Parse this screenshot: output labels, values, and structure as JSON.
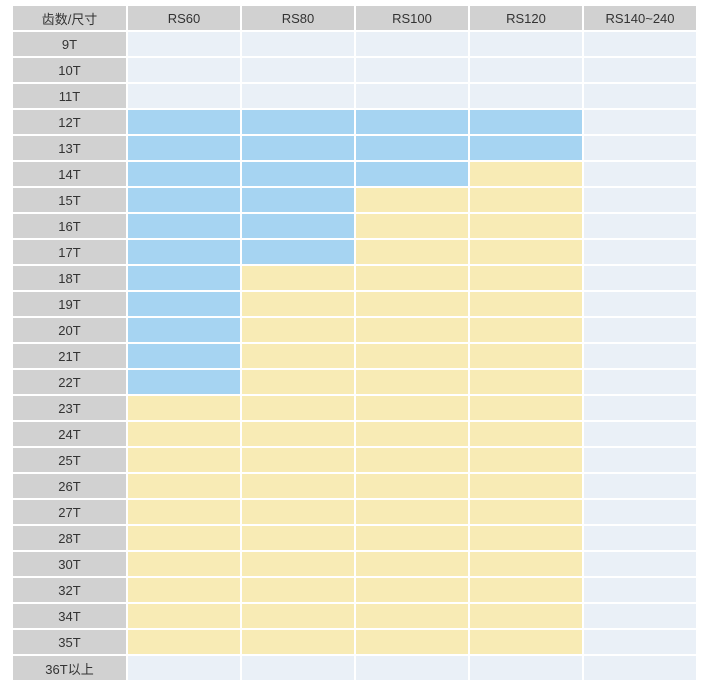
{
  "colors": {
    "header_bg": "#d1d1d1",
    "label_bg": "#d1d1d1",
    "cell_blue": "#a6d4f2",
    "cell_yellow": "#f8ebb5",
    "cell_empty": "#eaf0f7",
    "grid": "#ffffff",
    "text": "#333333"
  },
  "chart_data": {
    "type": "heatmap",
    "corner_label": "齿数/尺寸",
    "columns": [
      "RS60",
      "RS80",
      "RS100",
      "RS120",
      "RS140~240"
    ],
    "rows": [
      "9T",
      "10T",
      "11T",
      "12T",
      "13T",
      "14T",
      "15T",
      "16T",
      "17T",
      "18T",
      "19T",
      "20T",
      "21T",
      "22T",
      "23T",
      "24T",
      "25T",
      "26T",
      "27T",
      "28T",
      "30T",
      "32T",
      "34T",
      "35T",
      "36T以上"
    ],
    "cell_states": [
      [
        "empty",
        "empty",
        "empty",
        "empty",
        "empty"
      ],
      [
        "empty",
        "empty",
        "empty",
        "empty",
        "empty"
      ],
      [
        "empty",
        "empty",
        "empty",
        "empty",
        "empty"
      ],
      [
        "blue",
        "blue",
        "blue",
        "blue",
        "empty"
      ],
      [
        "blue",
        "blue",
        "blue",
        "blue",
        "empty"
      ],
      [
        "blue",
        "blue",
        "blue",
        "yellow",
        "empty"
      ],
      [
        "blue",
        "blue",
        "yellow",
        "yellow",
        "empty"
      ],
      [
        "blue",
        "blue",
        "yellow",
        "yellow",
        "empty"
      ],
      [
        "blue",
        "blue",
        "yellow",
        "yellow",
        "empty"
      ],
      [
        "blue",
        "yellow",
        "yellow",
        "yellow",
        "empty"
      ],
      [
        "blue",
        "yellow",
        "yellow",
        "yellow",
        "empty"
      ],
      [
        "blue",
        "yellow",
        "yellow",
        "yellow",
        "empty"
      ],
      [
        "blue",
        "yellow",
        "yellow",
        "yellow",
        "empty"
      ],
      [
        "blue",
        "yellow",
        "yellow",
        "yellow",
        "empty"
      ],
      [
        "yellow",
        "yellow",
        "yellow",
        "yellow",
        "empty"
      ],
      [
        "yellow",
        "yellow",
        "yellow",
        "yellow",
        "empty"
      ],
      [
        "yellow",
        "yellow",
        "yellow",
        "yellow",
        "empty"
      ],
      [
        "yellow",
        "yellow",
        "yellow",
        "yellow",
        "empty"
      ],
      [
        "yellow",
        "yellow",
        "yellow",
        "yellow",
        "empty"
      ],
      [
        "yellow",
        "yellow",
        "yellow",
        "yellow",
        "empty"
      ],
      [
        "yellow",
        "yellow",
        "yellow",
        "yellow",
        "empty"
      ],
      [
        "yellow",
        "yellow",
        "yellow",
        "yellow",
        "empty"
      ],
      [
        "yellow",
        "yellow",
        "yellow",
        "yellow",
        "empty"
      ],
      [
        "yellow",
        "yellow",
        "yellow",
        "yellow",
        "empty"
      ],
      [
        "empty",
        "empty",
        "empty",
        "empty",
        "empty"
      ]
    ]
  }
}
